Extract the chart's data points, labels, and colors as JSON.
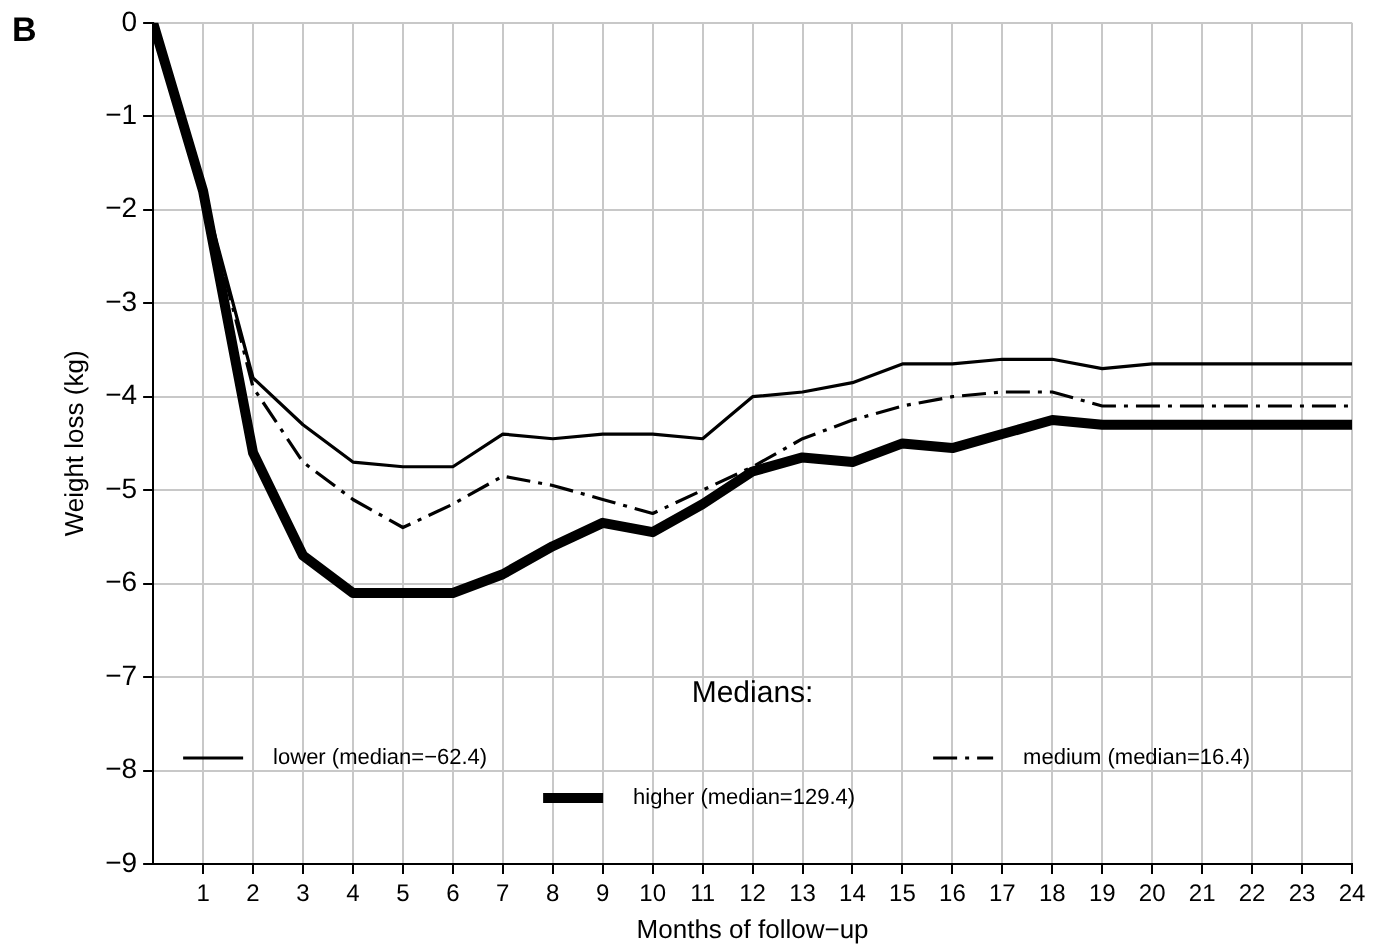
{
  "chart_data": {
    "type": "line",
    "title": "B",
    "xlabel": "Months of follow−up",
    "ylabel": "Weight loss (kg)",
    "legend_title": "Medians:",
    "legend": "bottom",
    "grid": true,
    "marker": "none",
    "x": [
      0,
      1,
      2,
      3,
      4,
      5,
      6,
      7,
      8,
      9,
      10,
      11,
      12,
      13,
      14,
      15,
      16,
      17,
      18,
      19,
      20,
      21,
      22,
      23,
      24
    ],
    "xlim": [
      0,
      24
    ],
    "xticks": [
      1,
      2,
      3,
      4,
      5,
      6,
      7,
      8,
      9,
      10,
      11,
      12,
      13,
      14,
      15,
      16,
      17,
      18,
      19,
      20,
      21,
      22,
      23,
      24
    ],
    "ylim": [
      -9,
      0
    ],
    "yticks": [
      -9,
      -8,
      -7,
      -6,
      -5,
      -4,
      -3,
      -2,
      -1,
      0
    ],
    "series": [
      {
        "name": "lower (median=−62.4)",
        "color": "#000000",
        "line_style": "solid",
        "values": [
          0,
          -1.8,
          -3.8,
          -4.3,
          -4.7,
          -4.75,
          -4.75,
          -4.4,
          -4.45,
          -4.4,
          -4.4,
          -4.45,
          -4.0,
          -3.95,
          -3.85,
          -3.65,
          -3.65,
          -3.6,
          -3.6,
          -3.7,
          -3.65,
          -3.65,
          -3.65,
          -3.65,
          -3.65
        ]
      },
      {
        "name": "medium (median=16.4)",
        "color": "#000000",
        "line_style": "dashed",
        "values": [
          0,
          -1.8,
          -3.9,
          -4.7,
          -5.1,
          -5.4,
          -5.15,
          -4.85,
          -4.95,
          -5.1,
          -5.25,
          -5.0,
          -4.75,
          -4.45,
          -4.25,
          -4.1,
          -4.0,
          -3.95,
          -3.95,
          -4.1,
          -4.1,
          -4.1,
          -4.1,
          -4.1,
          -4.1
        ]
      },
      {
        "name": "higher (median=129.4)",
        "color": "#000000",
        "line_style": "solid",
        "values": [
          0,
          -1.8,
          -4.6,
          -5.7,
          -6.1,
          -6.1,
          -6.1,
          -5.9,
          -5.6,
          -5.35,
          -5.45,
          -5.15,
          -4.8,
          -4.65,
          -4.7,
          -4.5,
          -4.55,
          -4.4,
          -4.25,
          -4.3,
          -4.3,
          -4.3,
          -4.3,
          -4.3,
          -4.3
        ]
      }
    ]
  }
}
